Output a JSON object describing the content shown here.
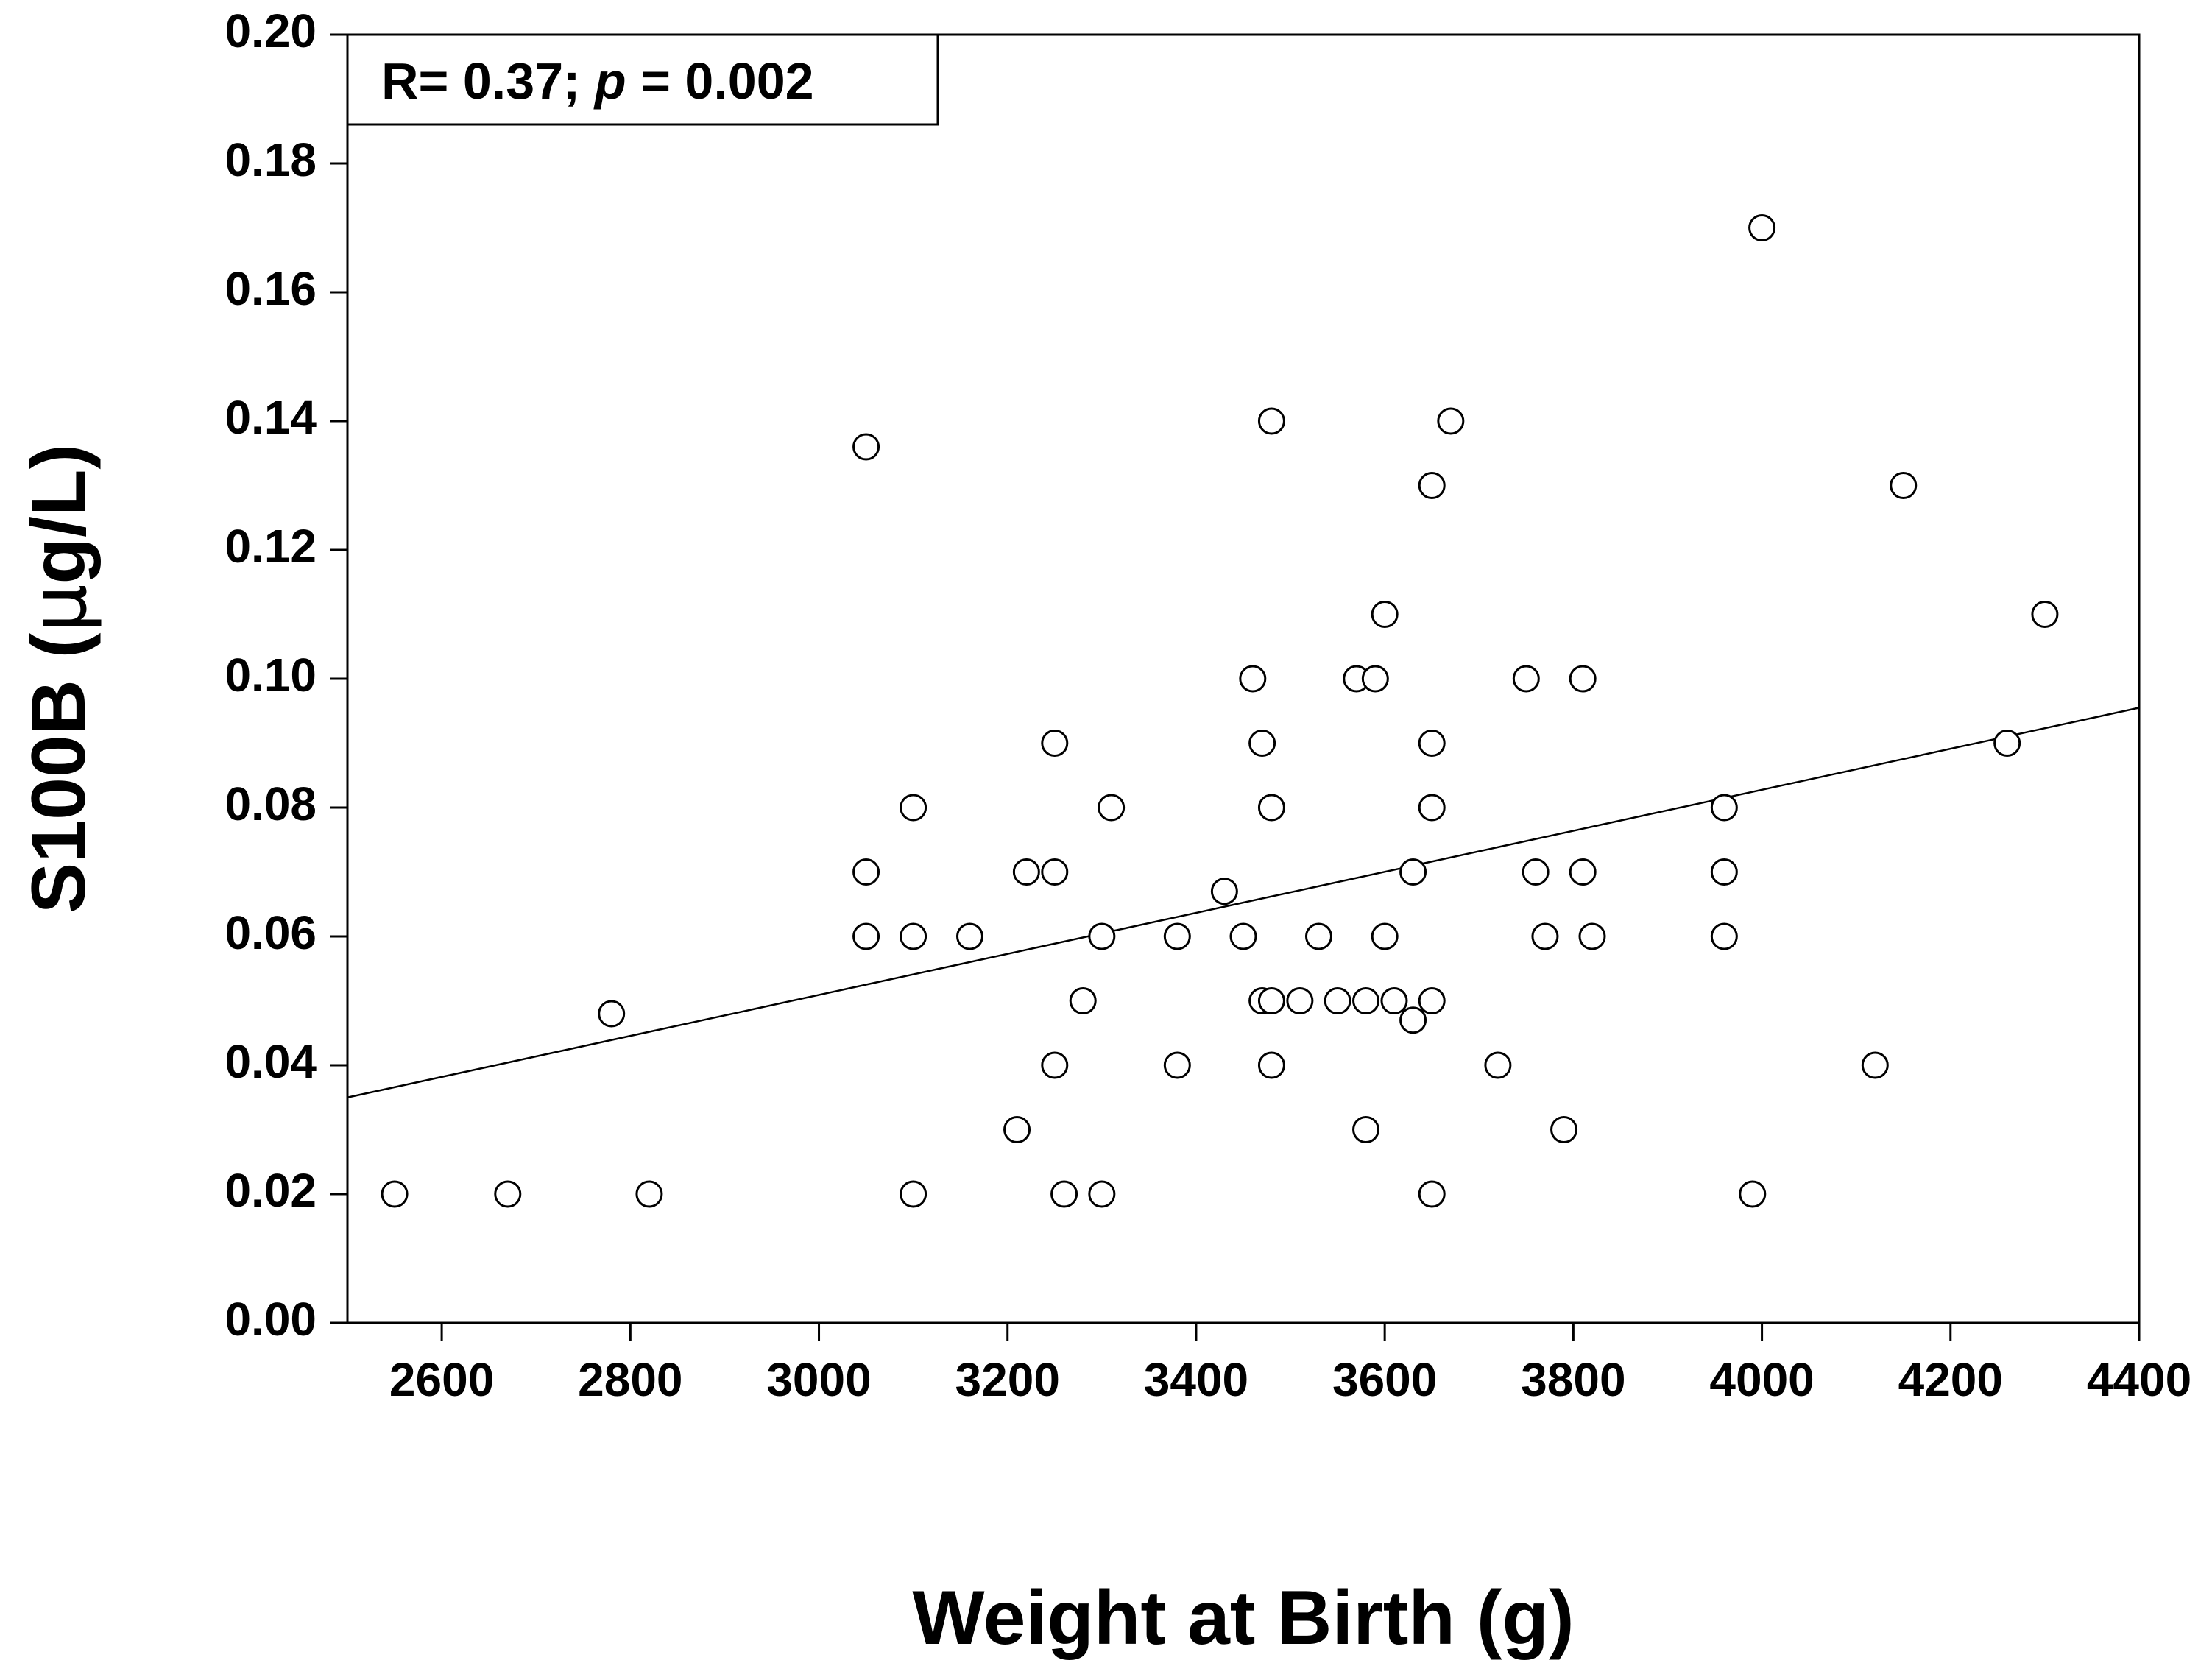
{
  "chart_data": {
    "type": "scatter",
    "title": "",
    "xlabel": "Weight at Birth (g)",
    "ylabel": {
      "prefix": "S100B (",
      "unit_mu": "μ",
      "unit_rest": "g/L)"
    },
    "xlim": [
      2500,
      4400
    ],
    "ylim": [
      0.0,
      0.2
    ],
    "xticks": [
      2600,
      2800,
      3000,
      3200,
      3400,
      3600,
      3800,
      4000,
      4200,
      4400
    ],
    "xtick_labels": [
      "2600",
      "2800",
      "3000",
      "3200",
      "3400",
      "3600",
      "3800",
      "4000",
      "4200",
      "4400"
    ],
    "yticks": [
      0.0,
      0.02,
      0.04,
      0.06,
      0.08,
      0.1,
      0.12,
      0.14,
      0.16,
      0.18,
      0.2
    ],
    "ytick_labels": [
      "0.00",
      "0.02",
      "0.04",
      "0.06",
      "0.08",
      "0.10",
      "0.12",
      "0.14",
      "0.16",
      "0.18",
      "0.20"
    ],
    "annotation": {
      "prefix": "R= 0.37; ",
      "italic": "p",
      "suffix": " = 0.002"
    },
    "regression_line": {
      "x": [
        2500,
        4400
      ],
      "y": [
        0.035,
        0.0955
      ]
    },
    "points": [
      {
        "x": 2550,
        "y": 0.02
      },
      {
        "x": 2670,
        "y": 0.02
      },
      {
        "x": 2780,
        "y": 0.048
      },
      {
        "x": 2820,
        "y": 0.02
      },
      {
        "x": 3050,
        "y": 0.136
      },
      {
        "x": 3050,
        "y": 0.07
      },
      {
        "x": 3050,
        "y": 0.06
      },
      {
        "x": 3100,
        "y": 0.08
      },
      {
        "x": 3100,
        "y": 0.06
      },
      {
        "x": 3100,
        "y": 0.02
      },
      {
        "x": 3160,
        "y": 0.06
      },
      {
        "x": 3210,
        "y": 0.03
      },
      {
        "x": 3220,
        "y": 0.07
      },
      {
        "x": 3250,
        "y": 0.09
      },
      {
        "x": 3250,
        "y": 0.07
      },
      {
        "x": 3250,
        "y": 0.04
      },
      {
        "x": 3260,
        "y": 0.02
      },
      {
        "x": 3280,
        "y": 0.05
      },
      {
        "x": 3300,
        "y": 0.06
      },
      {
        "x": 3300,
        "y": 0.02
      },
      {
        "x": 3310,
        "y": 0.08
      },
      {
        "x": 3380,
        "y": 0.06
      },
      {
        "x": 3380,
        "y": 0.04
      },
      {
        "x": 3430,
        "y": 0.067
      },
      {
        "x": 3450,
        "y": 0.06
      },
      {
        "x": 3460,
        "y": 0.1
      },
      {
        "x": 3470,
        "y": 0.09
      },
      {
        "x": 3470,
        "y": 0.05
      },
      {
        "x": 3480,
        "y": 0.14
      },
      {
        "x": 3480,
        "y": 0.08
      },
      {
        "x": 3480,
        "y": 0.05
      },
      {
        "x": 3480,
        "y": 0.04
      },
      {
        "x": 3510,
        "y": 0.05
      },
      {
        "x": 3530,
        "y": 0.06
      },
      {
        "x": 3550,
        "y": 0.05
      },
      {
        "x": 3570,
        "y": 0.1
      },
      {
        "x": 3580,
        "y": 0.05
      },
      {
        "x": 3580,
        "y": 0.03
      },
      {
        "x": 3590,
        "y": 0.1
      },
      {
        "x": 3600,
        "y": 0.11
      },
      {
        "x": 3600,
        "y": 0.06
      },
      {
        "x": 3610,
        "y": 0.05
      },
      {
        "x": 3630,
        "y": 0.07
      },
      {
        "x": 3630,
        "y": 0.047
      },
      {
        "x": 3650,
        "y": 0.13
      },
      {
        "x": 3650,
        "y": 0.09
      },
      {
        "x": 3650,
        "y": 0.08
      },
      {
        "x": 3650,
        "y": 0.05
      },
      {
        "x": 3650,
        "y": 0.02
      },
      {
        "x": 3670,
        "y": 0.14
      },
      {
        "x": 3720,
        "y": 0.04
      },
      {
        "x": 3750,
        "y": 0.1
      },
      {
        "x": 3760,
        "y": 0.07
      },
      {
        "x": 3770,
        "y": 0.06
      },
      {
        "x": 3790,
        "y": 0.03
      },
      {
        "x": 3810,
        "y": 0.1
      },
      {
        "x": 3810,
        "y": 0.07
      },
      {
        "x": 3820,
        "y": 0.06
      },
      {
        "x": 3960,
        "y": 0.08
      },
      {
        "x": 3960,
        "y": 0.07
      },
      {
        "x": 3960,
        "y": 0.06
      },
      {
        "x": 3990,
        "y": 0.02
      },
      {
        "x": 4000,
        "y": 0.17
      },
      {
        "x": 4120,
        "y": 0.04
      },
      {
        "x": 4150,
        "y": 0.13
      },
      {
        "x": 4260,
        "y": 0.09
      },
      {
        "x": 4300,
        "y": 0.11
      }
    ],
    "grid": false,
    "legend": "none"
  }
}
